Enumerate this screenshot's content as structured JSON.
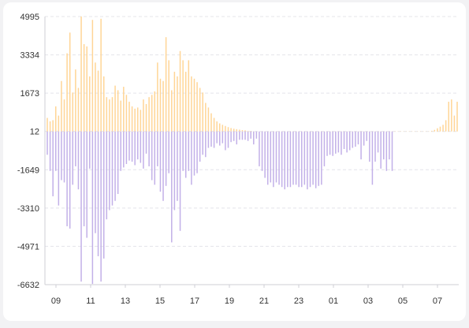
{
  "chart_data": {
    "type": "bar",
    "title": "",
    "xlabel": "",
    "ylabel": "",
    "ylim": [
      -6632,
      4995
    ],
    "grid": true,
    "y_ticks": [
      "4995",
      "3334",
      "1673",
      "12",
      "-1649",
      "-3310",
      "-4971",
      "-6632"
    ],
    "x_ticks": [
      "09",
      "11",
      "13",
      "15",
      "17",
      "19",
      "21",
      "23",
      "01",
      "03",
      "05",
      "07"
    ],
    "colors": {
      "positive": "#ffd596",
      "negative": "#c2b0e8"
    },
    "series": [
      {
        "values": [
          600,
          450,
          500,
          1100,
          700,
          2200,
          1400,
          3400,
          4300,
          1700,
          2700,
          1900,
          5000,
          3800,
          3700,
          2400,
          4850,
          3000,
          2650,
          4900,
          2400,
          1500,
          1400,
          1500,
          2000,
          1800,
          1350,
          1950,
          1600,
          1300,
          1100,
          1000,
          1050,
          950,
          1400,
          1200,
          1500,
          1600,
          1750,
          3000,
          2300,
          2200,
          4100,
          3100,
          1800,
          2600,
          2400,
          3500,
          3100,
          2600,
          3100,
          2400,
          2300,
          2150,
          1900,
          1700,
          1250,
          1050,
          800,
          600,
          450,
          360,
          300,
          250,
          200,
          160,
          130,
          110,
          90,
          70,
          60,
          40,
          30,
          20,
          15,
          10,
          8,
          6,
          5,
          4,
          4,
          3,
          3,
          3,
          3,
          3,
          3,
          3,
          3,
          3,
          3,
          3,
          3,
          3,
          3,
          3,
          3,
          3,
          3,
          3,
          3,
          3,
          3,
          3,
          3,
          3,
          3,
          3,
          3,
          3,
          3,
          3,
          3,
          3,
          3,
          3,
          3,
          3,
          3,
          3,
          3,
          3,
          3,
          3,
          3,
          3,
          3,
          3,
          3,
          3,
          3,
          3,
          3,
          3,
          3,
          3,
          40,
          80,
          150,
          220,
          300,
          500,
          1300,
          1400,
          700,
          1300
        ]
      },
      {
        "values": [
          -1000,
          -1700,
          -2800,
          -1700,
          -3200,
          -2100,
          -2200,
          -4100,
          -4200,
          -2300,
          -1500,
          -2500,
          -6500,
          -4100,
          -4600,
          -1600,
          -6600,
          -4400,
          -5400,
          -6500,
          -5500,
          -3800,
          -3400,
          -3200,
          -3000,
          -2700,
          -1700,
          -1550,
          -1400,
          -1250,
          -1300,
          -1450,
          -1200,
          -1350,
          -1600,
          -950,
          -1500,
          -2100,
          -2300,
          -1500,
          -2600,
          -3000,
          -2350,
          -1800,
          -4800,
          -3400,
          -3000,
          -4300,
          -1700,
          -2000,
          -1700,
          -2300,
          -1900,
          -1800,
          -1300,
          -1000,
          -1100,
          -700,
          -650,
          -700,
          -500,
          -600,
          -500,
          -800,
          -700,
          -450,
          -400,
          -550,
          -350,
          -350,
          -350,
          -400,
          -300,
          -550,
          -300,
          -1500,
          -1700,
          -2000,
          -2300,
          -2200,
          -2400,
          -2200,
          -2300,
          -2400,
          -2500,
          -2400,
          -2400,
          -2300,
          -2300,
          -2400,
          -2400,
          -2300,
          -2500,
          -2400,
          -2300,
          -2450,
          -2350,
          -2300,
          -1500,
          -1050,
          -1000,
          -1050,
          -950,
          -900,
          -1000,
          -750,
          -900,
          -800,
          -700,
          -650,
          -550,
          -1200,
          -600,
          -400,
          -1300,
          -2300,
          -1300,
          -900,
          -1600,
          -1200,
          -1700,
          -1200,
          -1700
        ]
      }
    ]
  }
}
